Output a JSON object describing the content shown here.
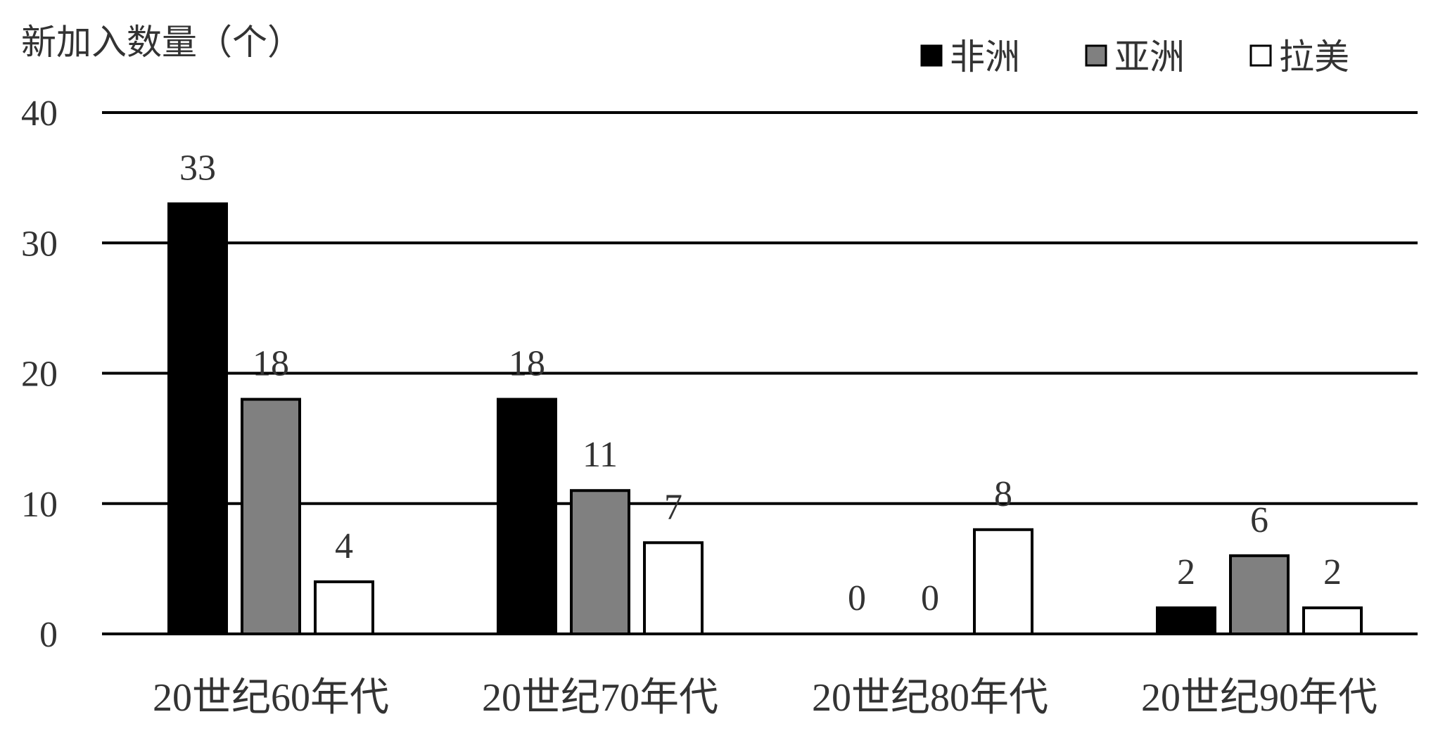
{
  "chart_data": {
    "type": "bar",
    "ylabel": "新加入数量（个）",
    "categories": [
      "20世纪60年代",
      "20世纪70年代",
      "20世纪80年代",
      "20世纪90年代"
    ],
    "series": [
      {
        "name": "非洲",
        "values": [
          33,
          18,
          0,
          2
        ],
        "color": "#000000"
      },
      {
        "name": "亚洲",
        "values": [
          18,
          11,
          0,
          6
        ],
        "color": "#808080"
      },
      {
        "name": "拉美",
        "values": [
          4,
          7,
          8,
          2
        ],
        "color": "#ffffff"
      }
    ],
    "ylim": [
      0,
      40
    ],
    "yticks": [
      0,
      10,
      20,
      30,
      40
    ],
    "grid": true,
    "legend_position": "top-right",
    "data_labels": true
  }
}
